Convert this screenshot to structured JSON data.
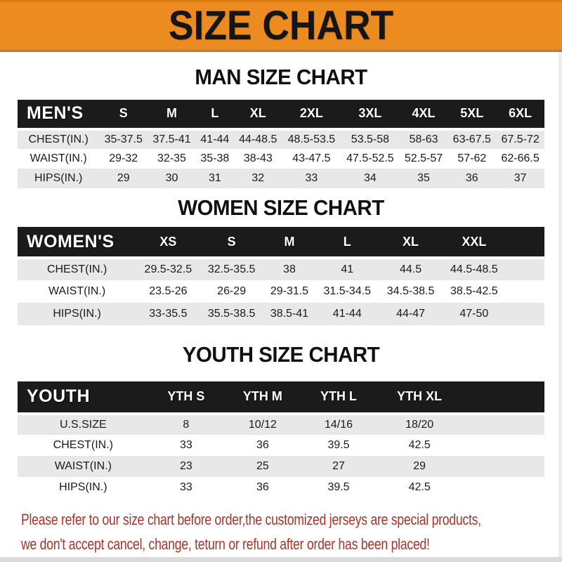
{
  "banner": {
    "title": "SIZE CHART"
  },
  "sections": [
    {
      "heading": "MAN SIZE CHART",
      "label": "MEN'S",
      "columns": [
        "S",
        "M",
        "L",
        "XL",
        "2XL",
        "3XL",
        "4XL",
        "5XL",
        "6XL"
      ],
      "rows": [
        {
          "label": "CHEST(IN.)",
          "values": [
            "35-37.5",
            "37.5-41",
            "41-44",
            "44-48.5",
            "48.5-53.5",
            "53.5-58",
            "58-63",
            "63-67.5",
            "67.5-72"
          ]
        },
        {
          "label": "WAIST(IN.)",
          "values": [
            "29-32",
            "32-35",
            "35-38",
            "38-43",
            "43-47.5",
            "47.5-52.5",
            "52.5-57",
            "57-62",
            "62-66.5"
          ]
        },
        {
          "label": "HIPS(IN.)",
          "values": [
            "29",
            "30",
            "31",
            "32",
            "33",
            "34",
            "35",
            "36",
            "37"
          ]
        }
      ]
    },
    {
      "heading": "WOMEN SIZE CHART",
      "label": "WOMEN'S",
      "columns": [
        "XS",
        "S",
        "M",
        "L",
        "XL",
        "XXL"
      ],
      "rows": [
        {
          "label": "CHEST(IN.)",
          "values": [
            "29.5-32.5",
            "32.5-35.5",
            "38",
            "41",
            "44.5",
            "44.5-48.5"
          ]
        },
        {
          "label": "WAIST(IN.)",
          "values": [
            "23.5-26",
            "26-29",
            "29-31.5",
            "31.5-34.5",
            "34.5-38.5",
            "38.5-42.5"
          ]
        },
        {
          "label": "HIPS(IN.)",
          "values": [
            "33-35.5",
            "35.5-38.5",
            "38.5-41",
            "41-44",
            "44-47",
            "47-50"
          ]
        }
      ]
    },
    {
      "heading": "YOUTH SIZE CHART",
      "label": "YOUTH",
      "columns": [
        "YTH S",
        "YTH M",
        "YTH L",
        "YTH XL"
      ],
      "rows": [
        {
          "label": "U.S.SIZE",
          "values": [
            "8",
            "10/12",
            "14/16",
            "18/20"
          ]
        },
        {
          "label": "CHEST(IN.)",
          "values": [
            "33",
            "36",
            "39.5",
            "42.5"
          ]
        },
        {
          "label": "WAIST(IN.)",
          "values": [
            "23",
            "25",
            "27",
            "29"
          ]
        },
        {
          "label": "HIPS(IN.)",
          "values": [
            "33",
            "36",
            "39.5",
            "42.5"
          ]
        }
      ]
    }
  ],
  "footer": {
    "line1": "Please refer to our size chart before order,the customized jerseys are special products,",
    "line2": "we don't accept cancel, change, teturn or refund after order has been placed!"
  },
  "colors": {
    "banner_orange": "#EC8B1F",
    "bar_black": "#1B1B1B",
    "row_gray": "#E8E8E8",
    "notice_red": "#A8342B"
  }
}
